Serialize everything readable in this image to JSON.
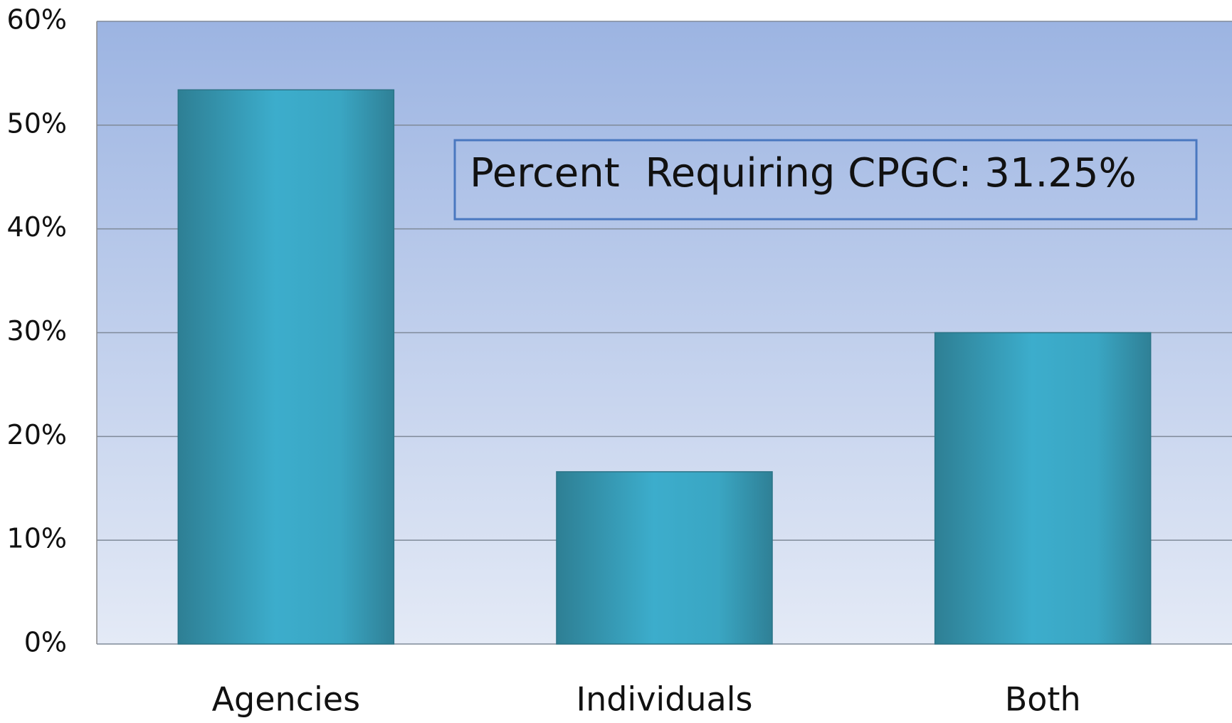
{
  "chart_data": {
    "type": "bar",
    "categories": [
      "Agencies",
      "Individuals",
      "Both"
    ],
    "values": [
      53.4,
      16.6,
      30
    ],
    "color": "#3aaccc",
    "ylim": [
      0,
      60
    ],
    "yticks": [
      {
        "value": 0,
        "label": "0%"
      },
      {
        "value": 10,
        "label": "10%"
      },
      {
        "value": 20,
        "label": "20%"
      },
      {
        "value": 30,
        "label": "30%"
      },
      {
        "value": 40,
        "label": "40%"
      },
      {
        "value": 50,
        "label": "50%"
      },
      {
        "value": 60,
        "label": "60%"
      }
    ],
    "grid": true,
    "annotation": "Percent  Requiring CPGC: 31.25%"
  }
}
